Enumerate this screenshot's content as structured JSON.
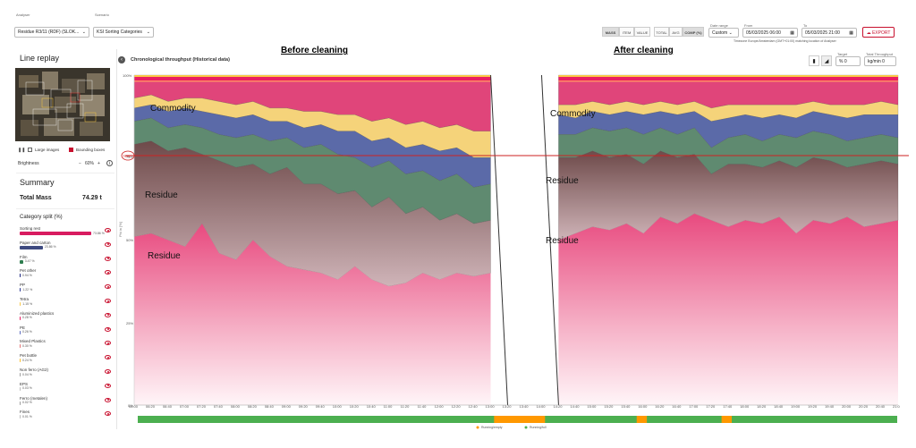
{
  "header": {
    "analyser_label": "Analyser",
    "analyser_value": "Residue R3/11 (RDF) (SLOK...",
    "scenario_label": "Scenario",
    "scenario_value": "KSI Sorting Categories",
    "modes": [
      "MASS",
      "ITEM",
      "VALUE",
      "TOTAL",
      "AVG",
      "COMP (%)"
    ],
    "active_mode": "COMP (%)",
    "date_range_label": "Date range",
    "date_range_value": "Custom",
    "from_label": "From",
    "from_value": "05/03/2025 06:00",
    "to_label": "To",
    "to_value": "05/03/2025 21:00",
    "export_label": "EXPORT",
    "timezone_note": "Timezone Europe/Amsterdam (GMT+01:00) matching location of Analyser"
  },
  "sidebar": {
    "line_replay_title": "Line replay",
    "large_images_label": "Large images",
    "bounding_boxes_label": "Bounding boxes",
    "brightness_label": "Brightness",
    "brightness_value": "60%",
    "summary_title": "Summary",
    "total_mass_label": "Total Mass",
    "total_mass_value": "74.29 t",
    "category_split_title": "Category split (%)",
    "categories": [
      {
        "name": "Sorting rest",
        "pct": "73.86 %",
        "color": "#d81b60"
      },
      {
        "name": "Paper and carton",
        "pct": "23.86 %",
        "color": "#3e4a80"
      },
      {
        "name": "Film",
        "pct": "3.47 %",
        "color": "#2e7d4f"
      },
      {
        "name": "Pet other",
        "pct": "0.94 %",
        "color": "#1a237e"
      },
      {
        "name": "PP",
        "pct": "1.22 %",
        "color": "#283593"
      },
      {
        "name": "Tetra",
        "pct": "1.15 %",
        "color": "#f9c846"
      },
      {
        "name": "Aluminized plastics",
        "pct": "0.28 %",
        "color": "#e91e63"
      },
      {
        "name": "PE",
        "pct": "0.26 %",
        "color": "#5c6bc0"
      },
      {
        "name": "Mixed Plastics",
        "pct": "0.30 %",
        "color": "#e57373"
      },
      {
        "name": "Pet bottle",
        "pct": "0.24 %",
        "color": "#fbc02d"
      },
      {
        "name": "Non ferro (AG2)",
        "pct": "0.04 %",
        "color": "#9e9e9e"
      },
      {
        "name": "EPS",
        "pct": "0.03 %",
        "color": "#bdbdbd"
      },
      {
        "name": "Ferro (metalen)",
        "pct": "0.02 %",
        "color": "#9e9e9e"
      },
      {
        "name": "Fines",
        "pct": "0.01 %",
        "color": "#bdbdbd"
      }
    ]
  },
  "chart": {
    "title": "Chronological throughput (Historical data)",
    "target_label": "Target",
    "target_value": "% 0",
    "total_throughput_label": "Total Throughput",
    "total_throughput_value": "kg/min 0",
    "y_ticks": [
      "100%",
      "75%",
      "50%",
      "25%",
      "0%"
    ],
    "ylabel": "Phi in [%]",
    "marker_75": "75%",
    "x_ticks": [
      "06:00",
      "06:20",
      "06:40",
      "07:00",
      "07:20",
      "07:40",
      "08:00",
      "08:20",
      "08:40",
      "09:00",
      "09:20",
      "09:40",
      "10:00",
      "10:20",
      "10:40",
      "11:00",
      "11:20",
      "11:40",
      "12:00",
      "12:20",
      "12:40",
      "13:00",
      "13:20",
      "13:40",
      "14:00",
      "14:20",
      "14:40",
      "15:00",
      "15:20",
      "15:40",
      "16:00",
      "16:20",
      "16:40",
      "17:00",
      "17:20",
      "17:40",
      "18:00",
      "18:20",
      "18:40",
      "19:00",
      "19:20",
      "19:40",
      "20:00",
      "20:20",
      "20:40",
      "21:0"
    ],
    "status_legend": [
      "Running/empty",
      "Running/full"
    ],
    "annotation_before": "Before cleaning",
    "annotation_after": "After cleaning",
    "label_commodity_1": "Commodity",
    "label_residue_1a": "Residue",
    "label_residue_1b": "Residue",
    "label_commodity_2": "Commodity",
    "label_residue_2a": "Residue",
    "label_residue_2b": "Residue"
  },
  "chart_data": {
    "type": "area",
    "title": "Chronological throughput (Historical data)",
    "ylabel": "Phi in [%]",
    "ylim": [
      0,
      100
    ],
    "x": [
      "06:00",
      "06:20",
      "06:40",
      "07:00",
      "07:20",
      "07:40",
      "08:00",
      "08:20",
      "08:40",
      "09:00",
      "09:20",
      "09:40",
      "10:00",
      "10:20",
      "10:40",
      "11:00",
      "11:20",
      "11:40",
      "12:00",
      "12:20",
      "12:40",
      "13:00",
      "13:20",
      "13:40",
      "14:00",
      "14:20",
      "14:40",
      "15:00",
      "15:20",
      "15:40",
      "16:00",
      "16:20",
      "16:40",
      "17:00",
      "17:20",
      "17:40",
      "18:00",
      "18:20",
      "18:40",
      "19:00",
      "19:20",
      "19:40",
      "20:00",
      "20:20",
      "20:40",
      "21:00"
    ],
    "series": [
      {
        "name": "Sorting rest (pink)",
        "values": [
          51,
          52,
          50,
          48,
          55,
          46,
          44,
          50,
          45,
          42,
          41,
          40,
          38,
          42,
          38,
          36,
          37,
          40,
          38,
          40,
          39,
          40,
          0,
          0,
          0,
          50,
          52,
          54,
          53,
          55,
          52,
          57,
          55,
          58,
          56,
          54,
          56,
          55,
          57,
          52,
          56,
          55,
          57,
          54,
          55,
          56
        ]
      },
      {
        "name": "Residue (brown)",
        "values": [
          79,
          80,
          77,
          78,
          76,
          74,
          72,
          73,
          70,
          72,
          67,
          67,
          64,
          65,
          60,
          63,
          58,
          60,
          56,
          58,
          55,
          56,
          0,
          0,
          0,
          75,
          75,
          77,
          75,
          76,
          73,
          77,
          75,
          76,
          70,
          73,
          73,
          72,
          74,
          72,
          75,
          74,
          72,
          73,
          74,
          73
        ]
      },
      {
        "name": "Film (green)",
        "values": [
          86,
          87,
          84,
          85,
          84,
          82,
          81,
          82,
          80,
          81,
          78,
          79,
          76,
          75,
          72,
          74,
          70,
          71,
          68,
          70,
          66,
          67,
          0,
          0,
          0,
          82,
          82,
          84,
          83,
          84,
          82,
          84,
          82,
          84,
          78,
          81,
          82,
          80,
          82,
          81,
          83,
          82,
          80,
          81,
          82,
          81
        ]
      },
      {
        "name": "Paper and carton (blue)",
        "values": [
          90,
          91,
          89,
          90,
          89,
          88,
          87,
          88,
          86,
          86,
          84,
          85,
          83,
          83,
          80,
          81,
          78,
          79,
          77,
          78,
          75,
          75,
          0,
          0,
          0,
          88,
          87,
          89,
          88,
          89,
          88,
          89,
          88,
          89,
          86,
          87,
          88,
          87,
          88,
          87,
          89,
          88,
          87,
          88,
          88,
          88
        ]
      },
      {
        "name": "Tetra (yellow)",
        "values": [
          93,
          94,
          92,
          93,
          93,
          92,
          91,
          92,
          90,
          90,
          89,
          89,
          88,
          88,
          86,
          87,
          85,
          86,
          84,
          85,
          83,
          83,
          0,
          0,
          0,
          91,
          91,
          92,
          91,
          92,
          91,
          92,
          91,
          92,
          90,
          91,
          91,
          91,
          91,
          91,
          92,
          91,
          91,
          91,
          92,
          91
        ]
      },
      {
        "name": "Other (top)",
        "values": [
          100,
          100,
          100,
          100,
          100,
          100,
          100,
          100,
          100,
          100,
          100,
          100,
          100,
          100,
          100,
          100,
          100,
          100,
          100,
          100,
          100,
          100,
          0,
          0,
          0,
          100,
          100,
          100,
          100,
          100,
          100,
          100,
          100,
          100,
          100,
          100,
          100,
          100,
          100,
          100,
          100,
          100,
          100,
          100,
          100,
          100
        ]
      }
    ]
  },
  "colors": {
    "accent_red": "#c8102e",
    "running_full": "#4caf50",
    "running_empty": "#ff9800"
  }
}
